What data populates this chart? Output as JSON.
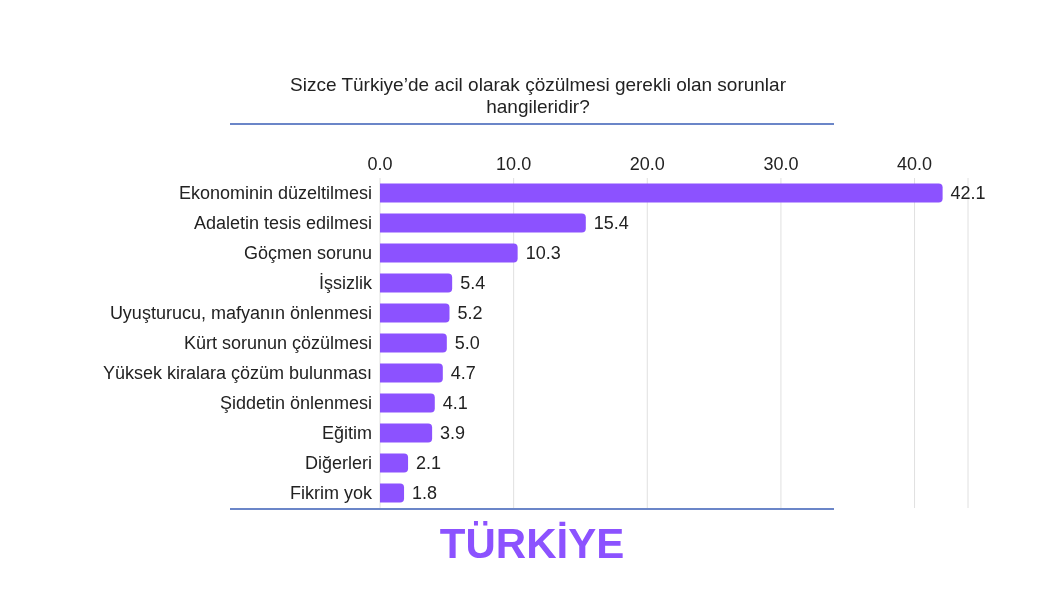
{
  "chart_data": {
    "type": "bar",
    "orientation": "horizontal",
    "title": "Sizce Türkiye’de acil olarak çözülmesi gerekli olan sorunlar hangileridir?",
    "categories": [
      "Ekonominin düzeltilmesi",
      "Adaletin tesis edilmesi",
      "Göçmen sorunu",
      "İşsizlik",
      "Uyuşturucu, mafyanın önlenmesi",
      "Kürt sorunun çözülmesi",
      "Yüksek kiralara çözüm bulunması",
      "Şiddetin önlenmesi",
      "Eğitim",
      "Diğerleri",
      "Fikrim yok"
    ],
    "values": [
      42.1,
      15.4,
      10.3,
      5.4,
      5.2,
      5.0,
      4.7,
      4.1,
      3.9,
      2.1,
      1.8
    ],
    "color": "#8c52ff",
    "xlim": [
      0,
      44
    ],
    "xticks": [
      {
        "value": 0,
        "label": "0.0"
      },
      {
        "value": 10,
        "label": "10.0"
      },
      {
        "value": 20,
        "label": "20.0"
      },
      {
        "value": 30,
        "label": "30.0"
      },
      {
        "value": 40,
        "label": "40.0"
      }
    ],
    "value_labels": [
      "42.1",
      "15.4",
      "10.3",
      "5.4",
      "5.2",
      "5.0",
      "4.7",
      "4.1",
      "3.9",
      "2.1",
      "1.8"
    ],
    "grid": "x",
    "annotations": [
      "TÜRKİYE"
    ]
  }
}
